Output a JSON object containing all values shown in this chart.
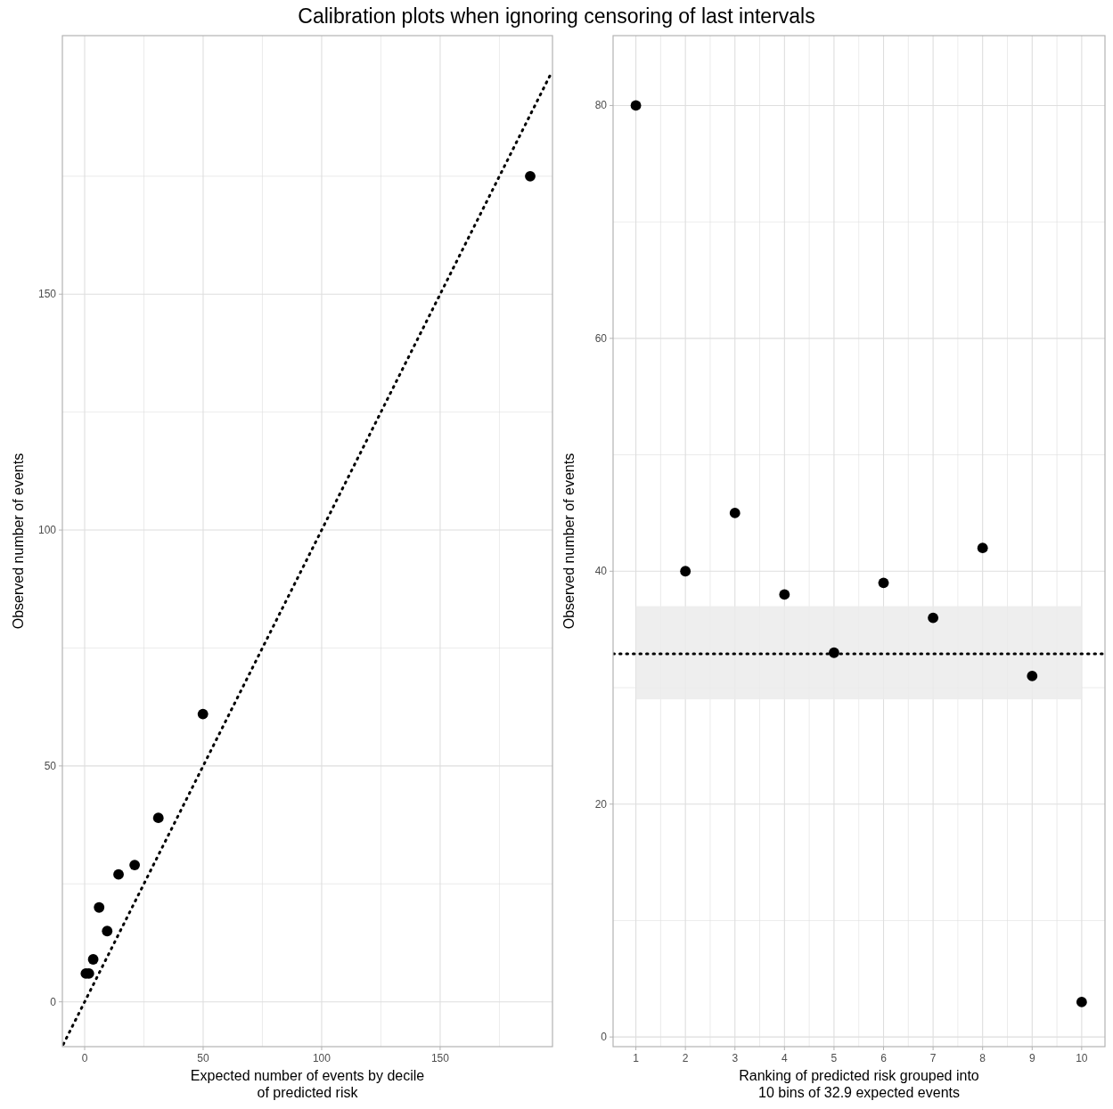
{
  "chart_data": [
    {
      "type": "scatter",
      "title": "Calibration plots when ignoring censoring of last intervals",
      "xlabel": "Expected number of events by decile\nof predicted risk",
      "ylabel": "Observed number of events",
      "xlim": [
        -9.4,
        197.4
      ],
      "ylim": [
        -9.5,
        204.8
      ],
      "xticks": [
        0,
        {
          "value": 25,
          "label": null
        },
        50,
        {
          "value": 75,
          "label": null
        },
        100,
        {
          "value": 125,
          "label": null
        },
        150,
        {
          "value": 175,
          "label": null
        }
      ],
      "yticks": [
        0,
        {
          "value": 25,
          "label": null
        },
        50,
        {
          "value": 75,
          "label": null
        },
        100,
        {
          "value": 125,
          "label": null
        },
        150,
        {
          "value": 175,
          "label": null
        }
      ],
      "grid": true,
      "marker": "circle",
      "series": [
        {
          "type": "scatter",
          "color": "#000000",
          "x": [
            0.5,
            1.8,
            3.6,
            6.1,
            9.5,
            14.3,
            21.1,
            31.1,
            49.9,
            188
          ],
          "values": [
            6,
            6,
            9,
            20,
            15,
            27,
            29,
            39,
            61,
            175
          ]
        },
        {
          "type": "line",
          "color": "#000000",
          "line_style": "dotted",
          "marker": "none",
          "x": [
            -9,
            197
          ],
          "values": [
            -9,
            197
          ]
        }
      ]
    },
    {
      "type": "scatter",
      "xlabel": "Ranking of predicted risk grouped into\n10 bins of 32.9 expected events",
      "ylabel": "Observed number of events",
      "xlim": [
        0.54,
        10.47
      ],
      "ylim": [
        -0.83,
        86
      ],
      "xticks": [
        1,
        {
          "value": 1.5,
          "label": null
        },
        2,
        {
          "value": 2.5,
          "label": null
        },
        3,
        {
          "value": 3.5,
          "label": null
        },
        4,
        {
          "value": 4.5,
          "label": null
        },
        5,
        {
          "value": 5.5,
          "label": null
        },
        6,
        {
          "value": 6.5,
          "label": null
        },
        7,
        {
          "value": 7.5,
          "label": null
        },
        8,
        {
          "value": 8.5,
          "label": null
        },
        9,
        {
          "value": 9.5,
          "label": null
        },
        10
      ],
      "yticks": [
        0,
        {
          "value": 10,
          "label": null
        },
        20,
        {
          "value": 30,
          "label": null
        },
        40,
        {
          "value": 50,
          "label": null
        },
        60,
        {
          "value": 70,
          "label": null
        },
        80
      ],
      "grid": true,
      "marker": "circle",
      "series": [
        {
          "type": "scatter",
          "color": "#000000",
          "x": [
            1,
            2,
            3,
            4,
            5,
            6,
            7,
            8,
            9,
            10
          ],
          "values": [
            80,
            40,
            45,
            38,
            33,
            39,
            36,
            42,
            31,
            3
          ]
        }
      ],
      "bands": [
        {
          "axis": "y",
          "from": 29,
          "to": 37,
          "color": "#ebebeb"
        }
      ],
      "ref_lines": [
        {
          "axis": "y",
          "value": 32.9,
          "line_style": "dotted",
          "color": "#000000"
        }
      ]
    }
  ]
}
